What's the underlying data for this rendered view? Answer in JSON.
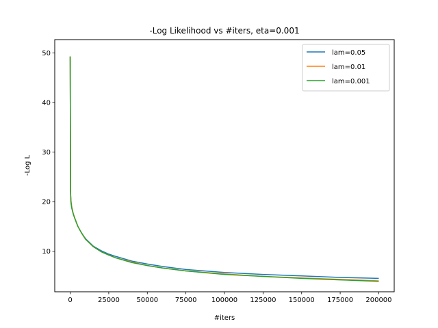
{
  "chart_data": {
    "type": "line",
    "title": "-Log Likelihood vs #iters, eta=0.001",
    "xlabel": "#iters",
    "ylabel": "-Log L",
    "xlim": [
      -10000,
      210000
    ],
    "ylim": [
      1.8,
      52.7
    ],
    "xticks": [
      0,
      25000,
      50000,
      75000,
      100000,
      125000,
      150000,
      175000,
      200000
    ],
    "yticks": [
      10,
      20,
      30,
      40,
      50
    ],
    "grid": false,
    "legend_position": "top-right",
    "series": [
      {
        "name": "lam=0.05",
        "color": "#1f77b4",
        "x": [
          0,
          250,
          500,
          1000,
          2000,
          3000,
          5000,
          7500,
          10000,
          15000,
          20000,
          25000,
          30000,
          40000,
          50000,
          60000,
          75000,
          100000,
          125000,
          150000,
          175000,
          200000
        ],
        "y": [
          49.3,
          21.5,
          19.8,
          18.7,
          17.5,
          16.6,
          15.0,
          13.6,
          12.5,
          11.0,
          10.1,
          9.4,
          8.9,
          8.0,
          7.4,
          6.9,
          6.3,
          5.7,
          5.3,
          5.0,
          4.7,
          4.5
        ]
      },
      {
        "name": "lam=0.01",
        "color": "#ff7f0e",
        "x": [
          0,
          250,
          500,
          1000,
          2000,
          3000,
          5000,
          7500,
          10000,
          15000,
          20000,
          25000,
          30000,
          40000,
          50000,
          60000,
          75000,
          100000,
          125000,
          150000,
          175000,
          200000
        ],
        "y": [
          49.3,
          22.0,
          20.3,
          19.0,
          17.6,
          16.7,
          15.0,
          13.6,
          12.4,
          10.9,
          9.9,
          9.2,
          8.6,
          7.8,
          7.1,
          6.6,
          6.0,
          5.4,
          4.9,
          4.6,
          4.3,
          4.0
        ]
      },
      {
        "name": "lam=0.001",
        "color": "#2ca02c",
        "x": [
          0,
          250,
          500,
          1000,
          2000,
          3000,
          5000,
          7500,
          10000,
          15000,
          20000,
          25000,
          30000,
          40000,
          50000,
          60000,
          75000,
          100000,
          125000,
          150000,
          175000,
          200000
        ],
        "y": [
          49.3,
          21.8,
          20.0,
          18.8,
          17.5,
          16.6,
          15.0,
          13.6,
          12.4,
          10.9,
          9.9,
          9.2,
          8.6,
          7.7,
          7.1,
          6.6,
          6.0,
          5.3,
          4.9,
          4.5,
          4.2,
          3.9
        ]
      }
    ]
  }
}
